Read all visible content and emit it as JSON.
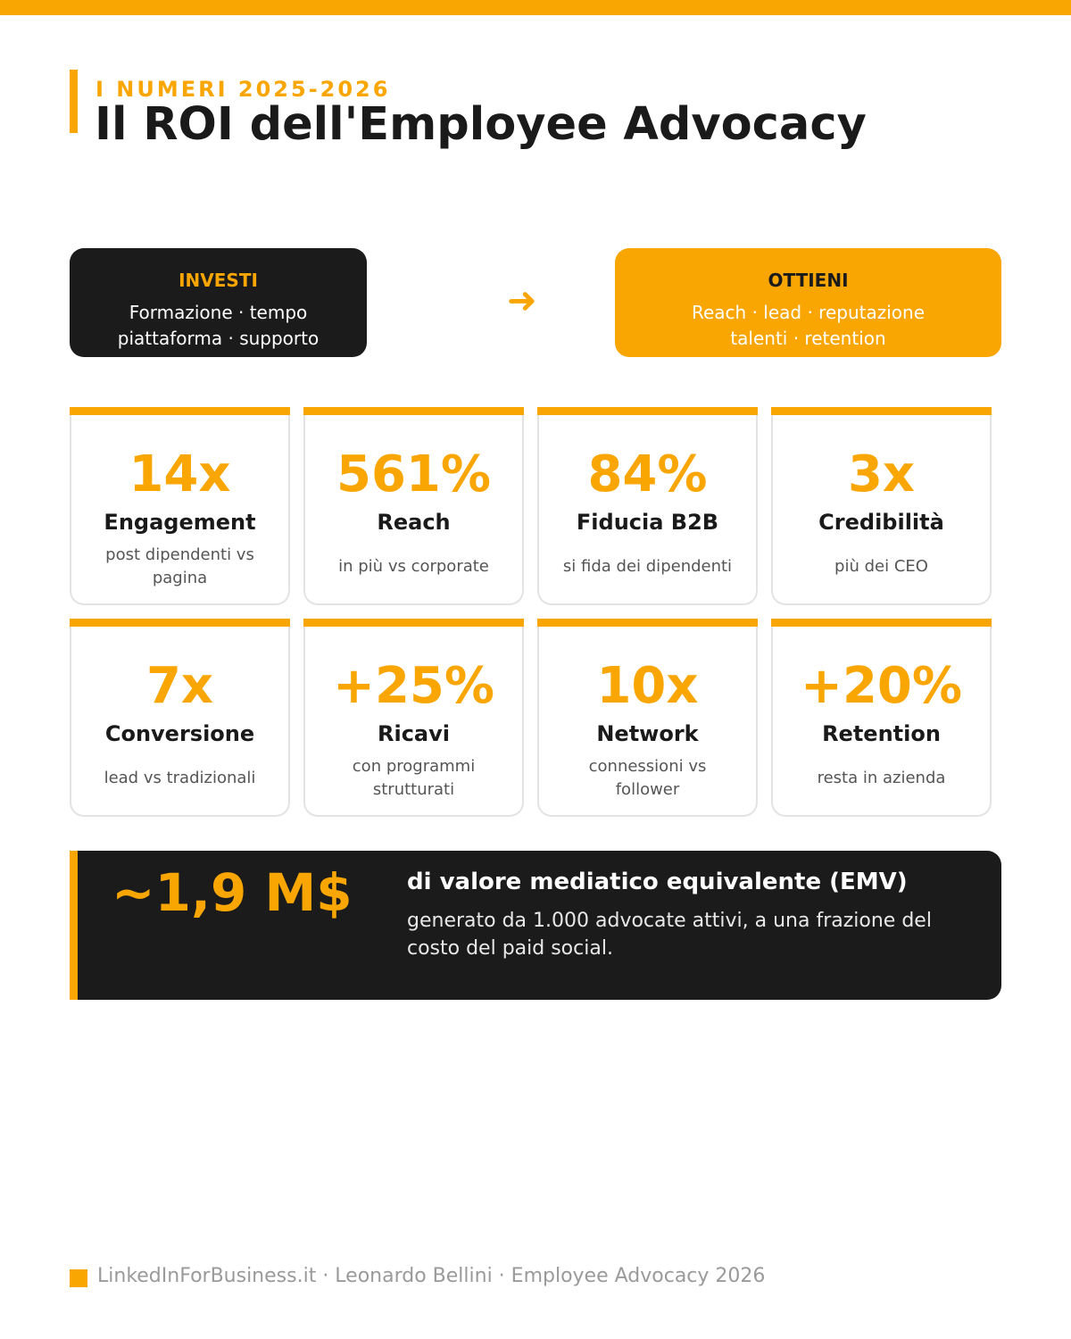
{
  "header": {
    "kicker": "I NUMERI 2025-2026",
    "title": "Il ROI dell'Employee Advocacy"
  },
  "invest": {
    "title": "INVESTI",
    "lines": [
      "Formazione · tempo",
      "piattaforma · supporto"
    ]
  },
  "arrow": "➜",
  "obtain": {
    "title": "OTTIENI",
    "lines": [
      "Reach · lead · reputazione",
      "talenti · retention"
    ]
  },
  "stats": [
    {
      "value": "14x",
      "label": "Engagement",
      "desc": "post dipendenti vs pagina"
    },
    {
      "value": "561%",
      "label": "Reach",
      "desc": "in più vs corporate"
    },
    {
      "value": "84%",
      "label": "Fiducia B2B",
      "desc": "si fida dei dipendenti"
    },
    {
      "value": "3x",
      "label": "Credibilità",
      "desc": "più dei CEO"
    },
    {
      "value": "7x",
      "label": "Conversione",
      "desc": "lead vs tradizionali"
    },
    {
      "value": "+25%",
      "label": "Ricavi",
      "desc": "con programmi strutturati"
    },
    {
      "value": "10x",
      "label": "Network",
      "desc": "connessioni vs follower"
    },
    {
      "value": "+20%",
      "label": "Retention",
      "desc": "resta in azienda"
    }
  ],
  "emv": {
    "value": "~1,9 M$",
    "title": "di valore mediatico equivalente (EMV)",
    "desc": "generato da 1.000 advocate attivi, a una frazione del costo del paid social."
  },
  "footer": {
    "text": "LinkedInForBusiness.it · Leonardo Bellini · Employee Advocacy 2026"
  },
  "colors": {
    "accent": "#F9A602",
    "dark": "#1b1b1b"
  }
}
